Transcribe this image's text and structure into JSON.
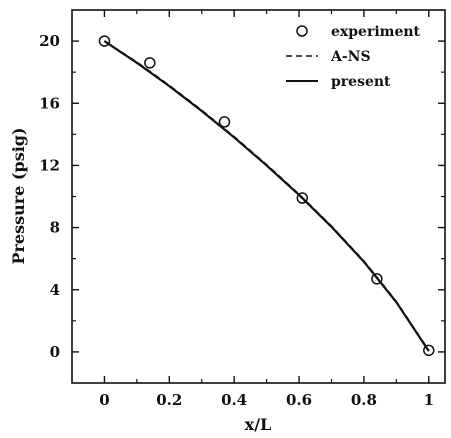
{
  "chart_data": {
    "type": "line",
    "xlabel": "x/L",
    "ylabel": "Pressure (psig)",
    "xlim": [
      -0.1,
      1.05
    ],
    "ylim": [
      -2,
      22
    ],
    "x_ticks": [
      0,
      0.2,
      0.4,
      0.6,
      0.8,
      1
    ],
    "x_tick_labels": [
      "0",
      "0.2",
      "0.4",
      "0.6",
      "0.8",
      "1"
    ],
    "y_ticks": [
      0,
      4,
      8,
      12,
      16,
      20
    ],
    "y_tick_labels": [
      "0",
      "4",
      "8",
      "12",
      "16",
      "20"
    ],
    "grid": false,
    "legend_position": "top-right",
    "series": [
      {
        "name": "experiment",
        "style": "markers",
        "marker": "open-circle",
        "x": [
          0.0,
          0.14,
          0.37,
          0.61,
          0.84,
          1.0
        ],
        "y": [
          20.0,
          18.6,
          14.8,
          9.9,
          4.7,
          0.1
        ]
      },
      {
        "name": "A-NS",
        "style": "dashed",
        "x": [
          0.0,
          0.1,
          0.2,
          0.3,
          0.4,
          0.5,
          0.6,
          0.7,
          0.8,
          0.9,
          1.0
        ],
        "y": [
          20.0,
          18.65,
          17.15,
          15.55,
          13.85,
          12.05,
          10.15,
          8.1,
          5.85,
          3.25,
          0.1
        ]
      },
      {
        "name": "present",
        "style": "solid",
        "x": [
          0.0,
          0.1,
          0.2,
          0.3,
          0.4,
          0.5,
          0.6,
          0.7,
          0.8,
          0.9,
          1.0
        ],
        "y": [
          20.0,
          18.6,
          17.1,
          15.5,
          13.8,
          12.0,
          10.1,
          8.05,
          5.8,
          3.2,
          0.05
        ]
      }
    ]
  }
}
